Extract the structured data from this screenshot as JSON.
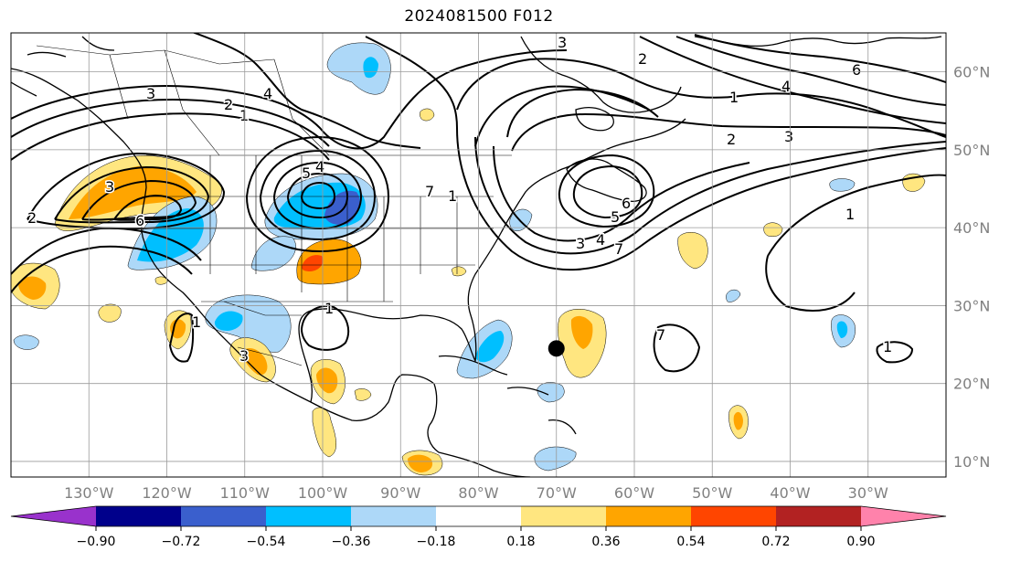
{
  "title": "2024081500 F012",
  "map": {
    "lon_range": [
      -140,
      -20
    ],
    "lat_range": [
      8,
      65
    ],
    "lon_ticks": [
      "130°W",
      "120°W",
      "110°W",
      "100°W",
      "90°W",
      "80°W",
      "70°W",
      "60°W",
      "50°W",
      "40°W",
      "30°W"
    ],
    "lat_ticks": [
      "60°N",
      "50°N",
      "40°N",
      "30°N",
      "20°N",
      "10°N"
    ],
    "storm_marker": {
      "lon": -70,
      "lat": 24.5,
      "color": "#000000"
    },
    "contour_labels": [
      "1",
      "2",
      "3",
      "4",
      "5",
      "6",
      "7"
    ]
  },
  "colorbar": {
    "ticks": [
      "−0.90",
      "−0.72",
      "−0.54",
      "−0.36",
      "−0.18",
      "0.18",
      "0.36",
      "0.54",
      "0.72",
      "0.90"
    ],
    "colors": [
      "#9932cc",
      "#00008b",
      "#3a5fcd",
      "#00bfff",
      "#add8f8",
      "#ffffff",
      "#ffe680",
      "#ffa500",
      "#ff4500",
      "#b22222",
      "#ff82ab"
    ]
  }
}
